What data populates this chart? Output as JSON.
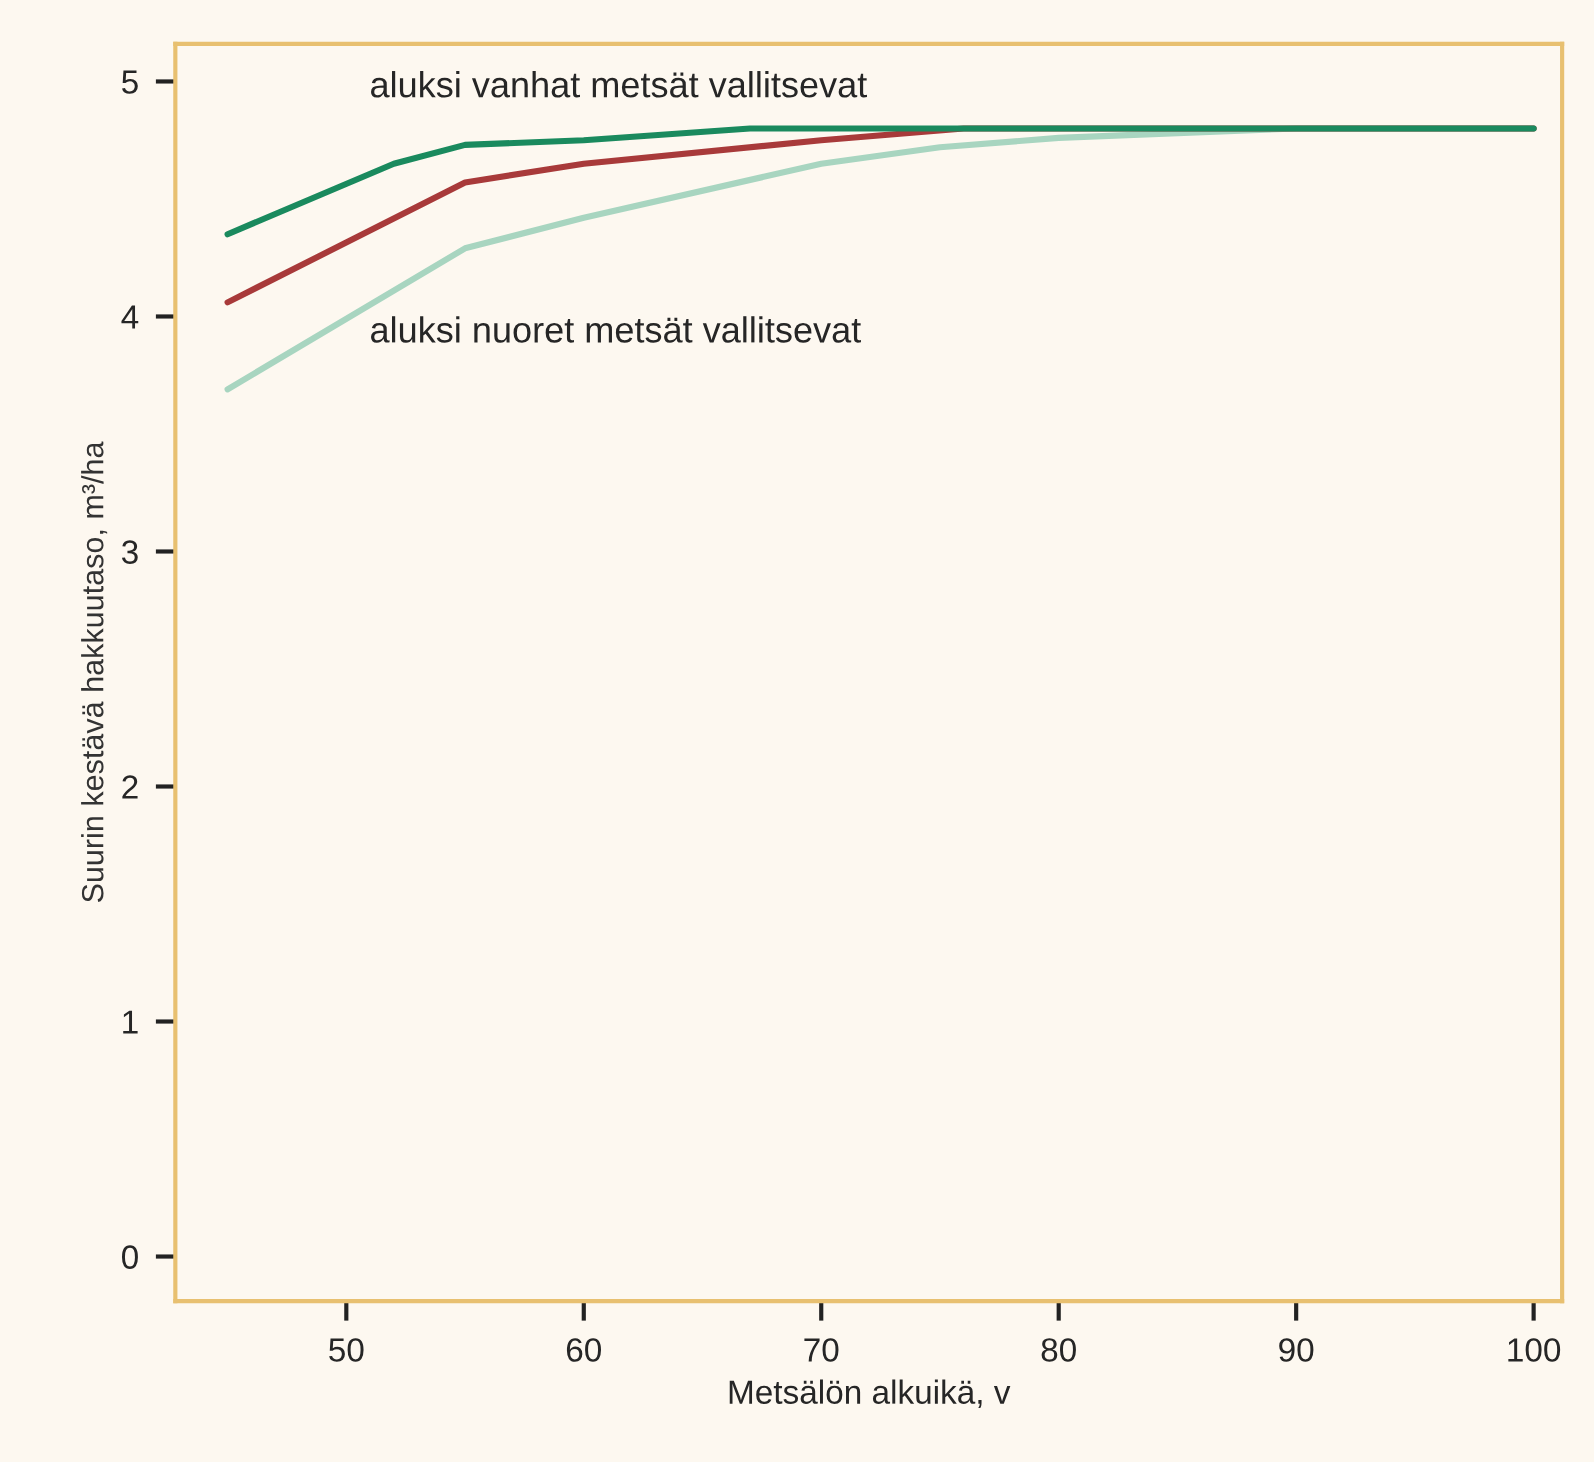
{
  "chart_data": {
    "type": "line",
    "xlabel": "Metsälön alkuikä, v",
    "ylabel": "Suurin kestävä hakkuutaso, m³/ha",
    "xlim": [
      42.8,
      101.2
    ],
    "xticks": [
      50,
      60,
      70,
      80,
      90,
      100
    ],
    "ylim": [
      -0.19,
      5.16
    ],
    "yticks": [
      0,
      1,
      2,
      3,
      4,
      5
    ],
    "grid": false,
    "marker": "none",
    "line_style": "solid",
    "series": [
      {
        "color": "#1a8a5e",
        "x": [
          45,
          52,
          55,
          60,
          67,
          100
        ],
        "values": [
          4.35,
          4.65,
          4.73,
          4.75,
          4.8,
          4.8
        ]
      },
      {
        "color": "#a83a3a",
        "x": [
          45,
          55,
          60,
          70,
          76,
          100
        ],
        "values": [
          4.06,
          4.57,
          4.65,
          4.75,
          4.8,
          4.8
        ]
      },
      {
        "color": "#a8d5c0",
        "x": [
          45,
          55,
          60,
          70,
          75,
          80,
          90,
          100
        ],
        "values": [
          3.69,
          4.29,
          4.42,
          4.65,
          4.72,
          4.76,
          4.8,
          4.8
        ]
      }
    ],
    "annotations": [
      "aluksi vanhat metsät vallitsevat",
      "aluksi nuoret metsät vallitsevat"
    ]
  }
}
